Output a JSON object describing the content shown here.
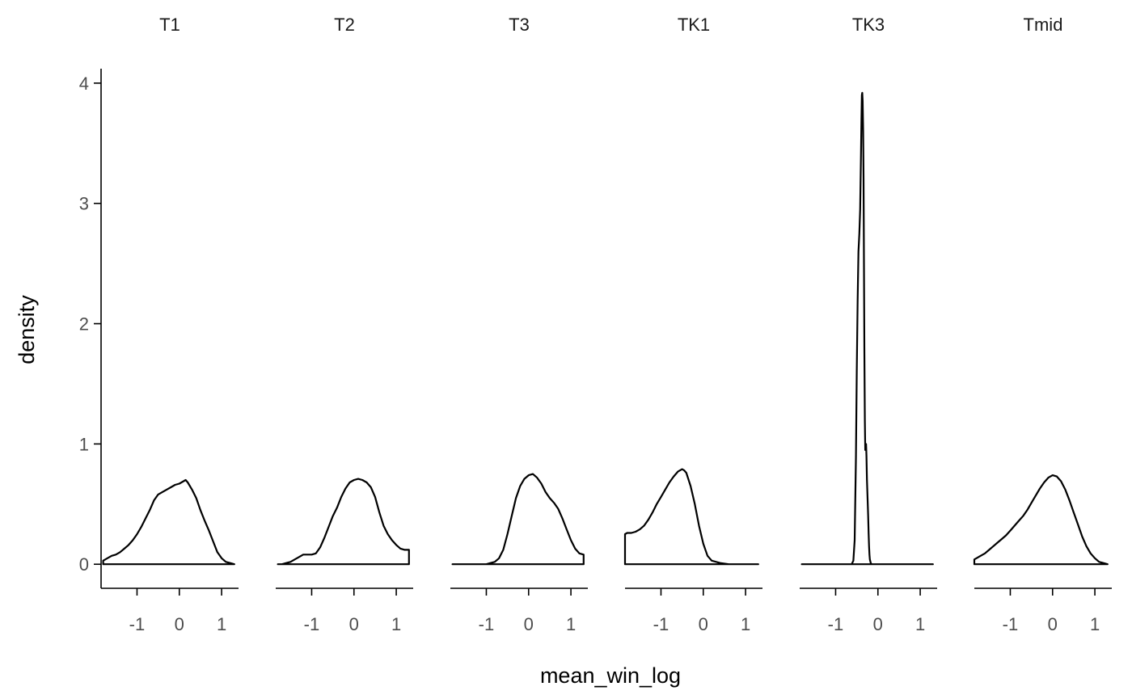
{
  "chart_data": {
    "type": "density",
    "xlabel": "mean_win_log",
    "ylabel": "density",
    "xlim": [
      -1.85,
      1.4
    ],
    "ylim": [
      -0.2,
      4.12
    ],
    "x_ticks": [
      -1,
      0,
      1
    ],
    "x_tick_labels": [
      "-1",
      "0",
      "1"
    ],
    "y_ticks": [
      0,
      1,
      2,
      3,
      4
    ],
    "y_tick_labels": [
      "0",
      "1",
      "2",
      "3",
      "4"
    ],
    "grid": false,
    "legend": "none",
    "facets": [
      {
        "name": "T1",
        "x": [
          -1.8,
          -1.7,
          -1.6,
          -1.5,
          -1.4,
          -1.3,
          -1.2,
          -1.1,
          -1.0,
          -0.9,
          -0.8,
          -0.7,
          -0.6,
          -0.5,
          -0.4,
          -0.3,
          -0.2,
          -0.1,
          0.0,
          0.1,
          0.15,
          0.2,
          0.3,
          0.4,
          0.5,
          0.6,
          0.7,
          0.8,
          0.9,
          1.0,
          1.1,
          1.2,
          1.3
        ],
        "y": [
          0.03,
          0.05,
          0.07,
          0.08,
          0.1,
          0.13,
          0.16,
          0.2,
          0.25,
          0.31,
          0.38,
          0.45,
          0.53,
          0.58,
          0.6,
          0.62,
          0.64,
          0.66,
          0.67,
          0.69,
          0.7,
          0.68,
          0.62,
          0.55,
          0.45,
          0.36,
          0.28,
          0.19,
          0.1,
          0.05,
          0.02,
          0.01,
          0.0
        ]
      },
      {
        "name": "T2",
        "x": [
          -1.8,
          -1.7,
          -1.6,
          -1.5,
          -1.4,
          -1.3,
          -1.2,
          -1.1,
          -1.0,
          -0.9,
          -0.8,
          -0.7,
          -0.6,
          -0.5,
          -0.4,
          -0.3,
          -0.2,
          -0.1,
          0.0,
          0.1,
          0.2,
          0.3,
          0.4,
          0.5,
          0.6,
          0.7,
          0.8,
          0.9,
          1.0,
          1.1,
          1.2,
          1.3,
          1.3
        ],
        "y": [
          0.0,
          0.0,
          0.01,
          0.02,
          0.04,
          0.06,
          0.08,
          0.08,
          0.08,
          0.09,
          0.14,
          0.22,
          0.31,
          0.4,
          0.47,
          0.56,
          0.63,
          0.68,
          0.7,
          0.71,
          0.7,
          0.68,
          0.64,
          0.56,
          0.43,
          0.32,
          0.25,
          0.2,
          0.16,
          0.13,
          0.12,
          0.12,
          0.0
        ]
      },
      {
        "name": "T3",
        "x": [
          -1.8,
          -1.5,
          -1.2,
          -1.0,
          -0.9,
          -0.8,
          -0.7,
          -0.6,
          -0.5,
          -0.4,
          -0.3,
          -0.2,
          -0.1,
          0.0,
          0.1,
          0.2,
          0.3,
          0.4,
          0.5,
          0.6,
          0.7,
          0.8,
          0.9,
          1.0,
          1.1,
          1.2,
          1.3,
          1.3
        ],
        "y": [
          0.0,
          0.0,
          0.0,
          0.0,
          0.01,
          0.02,
          0.05,
          0.12,
          0.25,
          0.4,
          0.55,
          0.65,
          0.71,
          0.74,
          0.75,
          0.72,
          0.67,
          0.6,
          0.55,
          0.51,
          0.46,
          0.38,
          0.29,
          0.2,
          0.13,
          0.09,
          0.08,
          0.0
        ]
      },
      {
        "name": "TK1",
        "x": [
          -1.85,
          -1.85,
          -1.8,
          -1.7,
          -1.6,
          -1.5,
          -1.4,
          -1.3,
          -1.2,
          -1.1,
          -1.0,
          -0.9,
          -0.8,
          -0.7,
          -0.6,
          -0.5,
          -0.45,
          -0.4,
          -0.3,
          -0.2,
          -0.1,
          0.0,
          0.1,
          0.2,
          0.4,
          0.6,
          0.8,
          1.0,
          1.3
        ],
        "y": [
          0.0,
          0.25,
          0.26,
          0.26,
          0.27,
          0.29,
          0.32,
          0.37,
          0.43,
          0.5,
          0.56,
          0.62,
          0.68,
          0.73,
          0.77,
          0.79,
          0.78,
          0.76,
          0.65,
          0.5,
          0.32,
          0.17,
          0.07,
          0.03,
          0.01,
          0.0,
          0.0,
          0.0,
          0.0
        ]
      },
      {
        "name": "TK3",
        "x": [
          -1.8,
          -1.2,
          -0.9,
          -0.7,
          -0.62,
          -0.58,
          -0.55,
          -0.52,
          -0.5,
          -0.48,
          -0.46,
          -0.44,
          -0.42,
          -0.4,
          -0.39,
          -0.38,
          -0.37,
          -0.36,
          -0.35,
          -0.34,
          -0.33,
          -0.32,
          -0.31,
          -0.3,
          -0.29,
          -0.28,
          -0.27,
          -0.26,
          -0.25,
          -0.24,
          -0.23,
          -0.22,
          -0.21,
          -0.2,
          -0.19,
          -0.17,
          -0.15,
          -0.12,
          -0.08,
          0.0,
          0.3,
          0.7,
          1.3
        ],
        "y": [
          0.0,
          0.0,
          0.0,
          0.0,
          0.0,
          0.03,
          0.2,
          0.9,
          1.6,
          2.2,
          2.6,
          2.75,
          2.95,
          3.4,
          3.7,
          3.9,
          3.92,
          3.85,
          3.6,
          3.2,
          2.5,
          1.8,
          1.2,
          0.95,
          0.98,
          1.0,
          0.9,
          0.7,
          0.6,
          0.5,
          0.4,
          0.25,
          0.15,
          0.08,
          0.04,
          0.01,
          0.0,
          0.0,
          0.0,
          0.0,
          0.0,
          0.0,
          0.0
        ]
      },
      {
        "name": "Tmid",
        "x": [
          -1.85,
          -1.85,
          -1.8,
          -1.7,
          -1.6,
          -1.5,
          -1.4,
          -1.3,
          -1.2,
          -1.1,
          -1.0,
          -0.9,
          -0.8,
          -0.7,
          -0.6,
          -0.5,
          -0.4,
          -0.3,
          -0.2,
          -0.1,
          0.0,
          0.1,
          0.2,
          0.3,
          0.4,
          0.5,
          0.6,
          0.7,
          0.8,
          0.9,
          1.0,
          1.1,
          1.2,
          1.3
        ],
        "y": [
          0.0,
          0.04,
          0.05,
          0.07,
          0.09,
          0.12,
          0.15,
          0.18,
          0.21,
          0.24,
          0.28,
          0.32,
          0.36,
          0.4,
          0.45,
          0.51,
          0.57,
          0.63,
          0.68,
          0.72,
          0.74,
          0.73,
          0.69,
          0.62,
          0.53,
          0.43,
          0.33,
          0.23,
          0.15,
          0.09,
          0.05,
          0.02,
          0.01,
          0.0
        ]
      }
    ]
  }
}
